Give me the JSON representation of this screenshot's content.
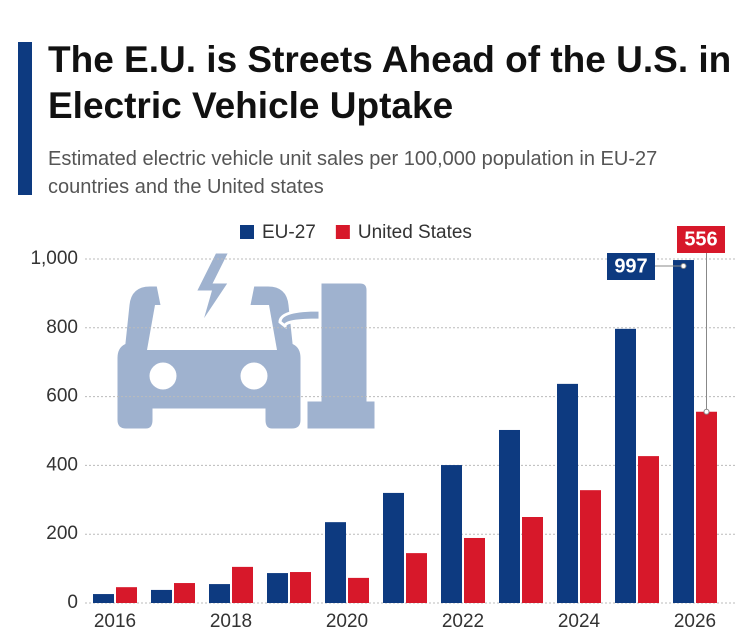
{
  "chart_data": {
    "type": "bar",
    "title": "The E.U. is Streets Ahead of the U.S. in Electric Vehicle Uptake",
    "subtitle": "Estimated electric vehicle unit sales per 100,000 population in EU-27 countries and the United states",
    "categories": [
      "2016",
      null,
      "2018",
      null,
      "2020",
      null,
      "2022",
      null,
      "2024",
      null,
      "2026"
    ],
    "series": [
      {
        "name": "EU-27",
        "color": "#0d3a80",
        "values": [
          26,
          38,
          55,
          87,
          235,
          320,
          401,
          503,
          637,
          797,
          997
        ]
      },
      {
        "name": "United States",
        "color": "#d7182a",
        "values": [
          46,
          58,
          105,
          90,
          73,
          145,
          189,
          250,
          328,
          427,
          556
        ]
      }
    ],
    "ylim": [
      0,
      1000
    ],
    "yticks": [
      0,
      200,
      400,
      600,
      800,
      {
        "value": 1000,
        "label": "1,000"
      }
    ],
    "grid": true
  }
}
